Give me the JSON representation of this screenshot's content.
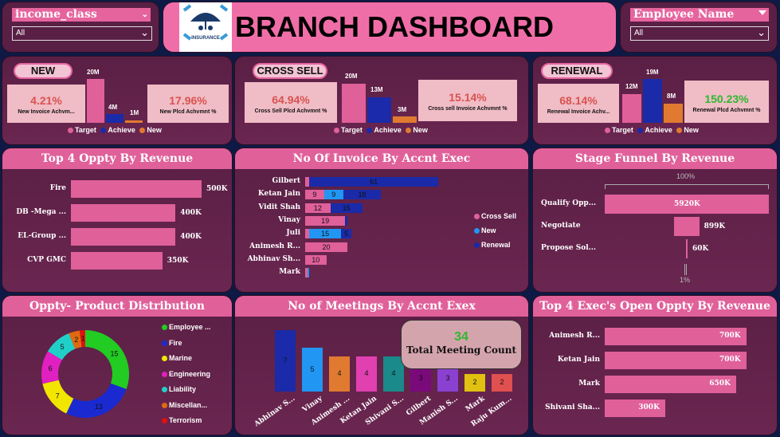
{
  "header": {
    "title": "BRANCH DASHBOARD",
    "logo_text": "INSURANCE"
  },
  "slicers": [
    {
      "title": "income_class",
      "value": "All"
    },
    {
      "title": "Employee Name",
      "value": "All"
    }
  ],
  "kpis": [
    {
      "name": "NEW",
      "target_label": "20M",
      "achieve_label": "4M",
      "new_label": "1M",
      "card1_value": "4.21%",
      "card1_label": "New Invoice Achvm...",
      "card2_value": "17.96%",
      "card2_label": "New Plcd Achvmnt %"
    },
    {
      "name": "CROSS SELL",
      "target_label": "20M",
      "achieve_label": "13M",
      "new_label": "3M",
      "card1_value": "64.94%",
      "card1_label": "Cross Sell Plcd Achvmnt %",
      "card2_value": "15.14%",
      "card2_label": "Cross sell Invoice Achvmnt %"
    },
    {
      "name": "RENEWAL",
      "target_label": "12M",
      "achieve_label": "19M",
      "new_label": "8M",
      "card1_value": "68.14%",
      "card1_label": "Renewal Invoice Achv...",
      "card2_value": "150.23%",
      "card2_label": "Renewal Plcd Achvmnt %"
    }
  ],
  "kpi_legend": [
    "Target",
    "Achieve",
    "New"
  ],
  "colors": {
    "target": "#e0609a",
    "achieve": "#1a2aa8",
    "new": "#e07a30",
    "pink": "#e0609a"
  },
  "panels": {
    "oppty": "Top 4 Oppty By Revenue",
    "invoice": "No Of Invoice By Accnt Exec",
    "funnel": "Stage Funnel By Revenue",
    "product": "Oppty- Product Distribution",
    "meetings": "No of Meetings By Accnt Exex",
    "exec": "Top 4 Exec's Open Oppty By Revenue"
  },
  "chart_data": [
    {
      "type": "bar",
      "title": "Top 4 Oppty By Revenue",
      "categories": [
        "Fire",
        "DB -Mega ...",
        "EL-Group ...",
        "CVP GMC"
      ],
      "values": [
        500,
        400,
        400,
        350
      ],
      "labels": [
        "500K",
        "400K",
        "400K",
        "350K"
      ]
    },
    {
      "type": "bar",
      "title": "No Of Invoice By Accnt Exec",
      "categories": [
        "Gilbert",
        "Ketan Jain",
        "Vidit Shah",
        "Vinay",
        "Juli",
        "Animesh R...",
        "Abhinav Sh...",
        "Mark"
      ],
      "series": [
        {
          "name": "Cross Sell",
          "values": [
            2,
            9,
            12,
            19,
            2,
            20,
            10,
            1
          ],
          "labels": [
            "",
            "9",
            "12",
            "19",
            "",
            "20",
            "10",
            ""
          ]
        },
        {
          "name": "New",
          "values": [
            0,
            9,
            0,
            0,
            15,
            0,
            0,
            1
          ],
          "labels": [
            "",
            "9",
            "",
            "",
            "15",
            "",
            "",
            ""
          ]
        },
        {
          "name": "Renewal",
          "values": [
            61,
            18,
            15,
            1,
            5,
            0,
            0,
            0
          ],
          "labels": [
            "61",
            "18",
            "15",
            "",
            "5",
            "",
            "",
            ""
          ]
        }
      ]
    },
    {
      "type": "bar",
      "title": "Stage Funnel By Revenue",
      "categories": [
        "Qualify Opp...",
        "Negotiate",
        "Propose Sol..."
      ],
      "values": [
        5920,
        899,
        60
      ],
      "labels": [
        "5920K",
        "899K",
        "60K"
      ],
      "top_pct": "100%",
      "bottom_pct": "1%"
    },
    {
      "type": "pie",
      "title": "Oppty- Product Distribution",
      "categories": [
        "Employee ...",
        "Fire",
        "Marine",
        "Engineering",
        "Liability",
        "Miscellan...",
        "Terrorism"
      ],
      "values": [
        15,
        13,
        7,
        6,
        5,
        2,
        1
      ],
      "colors": [
        "#22cc22",
        "#1a2ad0",
        "#f2e600",
        "#e020c0",
        "#20d0c8",
        "#e06a10",
        "#e01010"
      ]
    },
    {
      "type": "bar",
      "title": "No of Meetings By Accnt Exex",
      "categories": [
        "Abhinav S...",
        "Vinay",
        "Animesh ...",
        "Ketan Jain",
        "Shivani S...",
        "Gilbert",
        "Manish S...",
        "Mark",
        "Raju Kum..."
      ],
      "values": [
        7,
        5,
        4,
        4,
        4,
        3,
        3,
        2,
        2
      ],
      "colors": [
        "#1a2aa8",
        "#2196f3",
        "#e07a30",
        "#e040b0",
        "#1a8a8a",
        "#7a0a7a",
        "#8a40d0",
        "#e0c010",
        "#e05050"
      ]
    },
    {
      "type": "bar",
      "title": "Top 4 Exec's Open Oppty By Revenue",
      "categories": [
        "Animesh R...",
        "Ketan Jain",
        "Mark",
        "Shivani Sha..."
      ],
      "values": [
        700,
        700,
        650,
        300
      ],
      "labels": [
        "700K",
        "700K",
        "650K",
        "300K"
      ]
    }
  ],
  "meeting_total": {
    "value": "34",
    "label": "Total Meeting Count"
  }
}
